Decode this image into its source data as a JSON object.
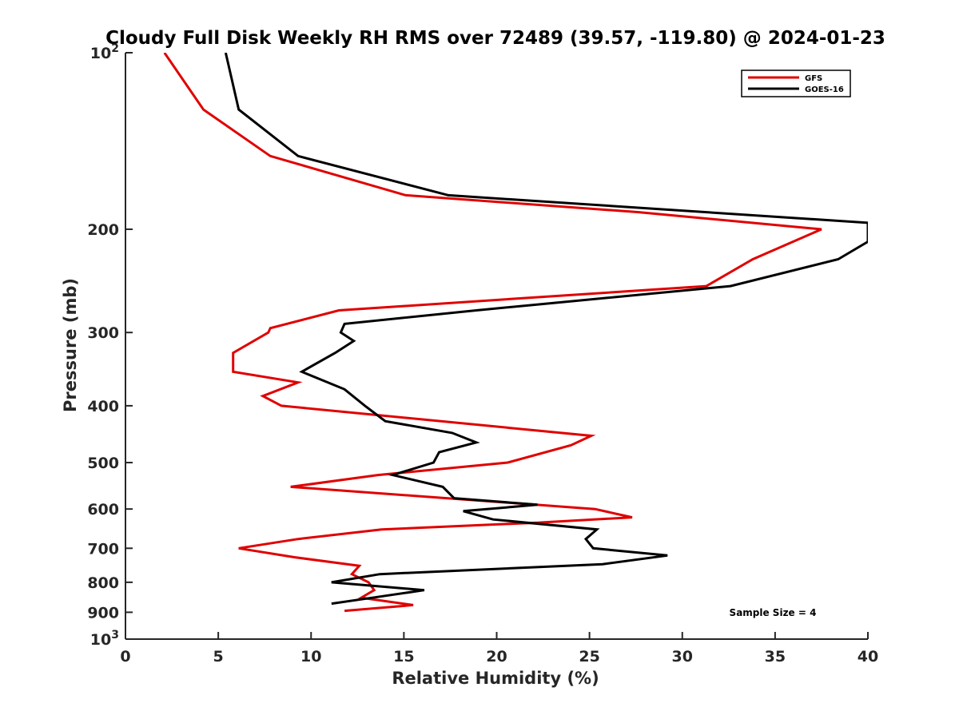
{
  "chart_data": {
    "type": "line",
    "title": "Cloudy Full Disk Weekly RH RMS over 72489 (39.57, -119.80) @ 2024-01-23",
    "xlabel": "Relative Humidity (%)",
    "ylabel": "Pressure (mb)",
    "xlim": [
      0,
      40
    ],
    "ylim": [
      100,
      1000
    ],
    "yscale": "log",
    "y_reversed": true,
    "grid": false,
    "legend_position": "top-right",
    "xticks": [
      0,
      5,
      10,
      15,
      20,
      25,
      30,
      35,
      40
    ],
    "yticks": [
      {
        "value": 100,
        "base": "10",
        "exp": "2"
      },
      {
        "value": 200,
        "label": "200"
      },
      {
        "value": 300,
        "label": "300"
      },
      {
        "value": 400,
        "label": "400"
      },
      {
        "value": 500,
        "label": "500"
      },
      {
        "value": 600,
        "label": "600"
      },
      {
        "value": 700,
        "label": "700"
      },
      {
        "value": 800,
        "label": "800"
      },
      {
        "value": 900,
        "label": "900"
      },
      {
        "value": 1000,
        "base": "10",
        "exp": "3"
      }
    ],
    "annotation": "Sample Size = 4",
    "series": [
      {
        "name": "GFS",
        "color": "#e00000",
        "points": [
          [
            2.1,
            100
          ],
          [
            4.2,
            125
          ],
          [
            7.8,
            150
          ],
          [
            15.1,
            175
          ],
          [
            27.6,
            187
          ],
          [
            37.5,
            200
          ],
          [
            33.8,
            225
          ],
          [
            31.3,
            250
          ],
          [
            11.5,
            275
          ],
          [
            7.8,
            295
          ],
          [
            7.7,
            300
          ],
          [
            5.8,
            325
          ],
          [
            5.8,
            350
          ],
          [
            9.3,
            365
          ],
          [
            7.4,
            385
          ],
          [
            8.4,
            400
          ],
          [
            25.1,
            450
          ],
          [
            24,
            467
          ],
          [
            20.6,
            500
          ],
          [
            13.6,
            525
          ],
          [
            8.9,
            550
          ],
          [
            17.3,
            575
          ],
          [
            25.3,
            600
          ],
          [
            27.3,
            620
          ],
          [
            22.2,
            633
          ],
          [
            13.8,
            650
          ],
          [
            9.3,
            675
          ],
          [
            6.1,
            700
          ],
          [
            9.1,
            725
          ],
          [
            12.6,
            750
          ],
          [
            12.2,
            775
          ],
          [
            13.1,
            800
          ],
          [
            13.4,
            825
          ],
          [
            12.7,
            850
          ],
          [
            15.5,
            875
          ],
          [
            11.8,
            895
          ]
        ]
      },
      {
        "name": "GOES-16",
        "color": "#000000",
        "points": [
          [
            5.4,
            100
          ],
          [
            6.1,
            125
          ],
          [
            9.3,
            150
          ],
          [
            17.4,
            175
          ],
          [
            40,
            195
          ],
          [
            40,
            210
          ],
          [
            38.4,
            225
          ],
          [
            32.6,
            250
          ],
          [
            18.9,
            275
          ],
          [
            11.8,
            290
          ],
          [
            11.6,
            300
          ],
          [
            12.3,
            310
          ],
          [
            11.3,
            325
          ],
          [
            9.5,
            350
          ],
          [
            11.8,
            375
          ],
          [
            12.9,
            400
          ],
          [
            14,
            425
          ],
          [
            17.6,
            445
          ],
          [
            18.9,
            462
          ],
          [
            16.9,
            480
          ],
          [
            16.6,
            500
          ],
          [
            14.4,
            525
          ],
          [
            17.1,
            550
          ],
          [
            17.7,
            575
          ],
          [
            22.2,
            590
          ],
          [
            18.2,
            605
          ],
          [
            19.8,
            625
          ],
          [
            25.4,
            650
          ],
          [
            24.8,
            675
          ],
          [
            25.2,
            700
          ],
          [
            29.2,
            720
          ],
          [
            25.7,
            745
          ],
          [
            13.7,
            775
          ],
          [
            11.1,
            800
          ],
          [
            16.1,
            825
          ],
          [
            13.3,
            850
          ],
          [
            11.1,
            870
          ]
        ]
      }
    ]
  }
}
